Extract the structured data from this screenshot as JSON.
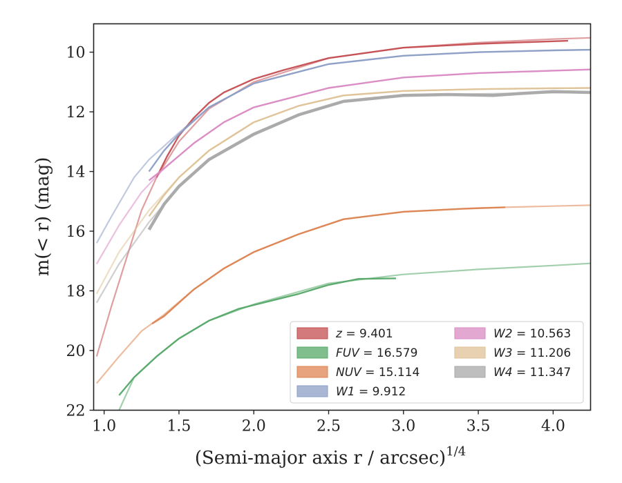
{
  "chart_data": {
    "type": "line",
    "xlabel": "(Semi-major axis r / arcsec)",
    "xlabel_sup": "1/4",
    "ylabel": "m(< r) (mag)",
    "xlim": [
      0.93,
      4.25
    ],
    "ylim": [
      22,
      9.05
    ],
    "y_inverted": true,
    "xticks": [
      1.0,
      1.5,
      2.0,
      2.5,
      3.0,
      3.5,
      4.0
    ],
    "xtick_labels": [
      "1.0",
      "1.5",
      "2.0",
      "2.5",
      "3.0",
      "3.5",
      "4.0"
    ],
    "yticks": [
      10,
      12,
      14,
      16,
      18,
      20,
      22
    ],
    "ytick_labels": [
      "10",
      "12",
      "14",
      "16",
      "18",
      "20",
      "22"
    ],
    "grid": false,
    "legend_position": "lower-right",
    "series": [
      {
        "name": "z = 9.401",
        "legend_parts": [
          "z",
          "9.401"
        ],
        "color": "#c44e52",
        "extrapolated": {
          "x": [
            0.95,
            1.05,
            1.15,
            1.25,
            1.35,
            1.5,
            1.7,
            2.0,
            2.5,
            3.0,
            3.5,
            4.0,
            4.25
          ],
          "y": [
            20.2,
            18.5,
            16.9,
            15.3,
            14.2,
            13.0,
            11.9,
            11.0,
            10.2,
            9.85,
            9.68,
            9.56,
            9.52
          ]
        },
        "measured": {
          "x": [
            1.35,
            1.42,
            1.5,
            1.6,
            1.7,
            1.8,
            2.0,
            2.2,
            2.5,
            3.0,
            3.5,
            4.1
          ],
          "y": [
            14.2,
            13.5,
            12.8,
            12.2,
            11.7,
            11.35,
            10.9,
            10.6,
            10.2,
            9.85,
            9.72,
            9.62
          ]
        }
      },
      {
        "name": "FUV = 16.579",
        "legend_parts": [
          "FUV",
          "16.579"
        ],
        "color": "#55a868",
        "extrapolated": {
          "x": [
            1.1,
            1.2,
            1.35,
            1.5,
            1.7,
            2.0,
            2.5,
            3.0,
            3.5,
            4.0,
            4.25
          ],
          "y": [
            22.0,
            20.9,
            20.2,
            19.6,
            19.0,
            18.45,
            17.75,
            17.45,
            17.28,
            17.15,
            17.08
          ]
        },
        "measured": {
          "x": [
            1.1,
            1.2,
            1.35,
            1.5,
            1.7,
            1.9,
            2.1,
            2.3,
            2.5,
            2.7,
            2.95
          ],
          "y": [
            21.5,
            20.9,
            20.2,
            19.6,
            19.0,
            18.6,
            18.35,
            18.1,
            17.8,
            17.6,
            17.58
          ]
        }
      },
      {
        "name": "NUV = 15.114",
        "legend_parts": [
          "NUV",
          "15.114"
        ],
        "color": "#dd8452",
        "extrapolated": {
          "x": [
            0.95,
            1.1,
            1.25,
            1.4,
            1.6,
            1.8,
            2.0,
            2.3,
            2.6,
            3.0,
            3.5,
            4.0,
            4.25
          ],
          "y": [
            21.1,
            20.2,
            19.35,
            18.8,
            17.95,
            17.25,
            16.7,
            16.1,
            15.6,
            15.35,
            15.22,
            15.16,
            15.13
          ]
        },
        "measured": {
          "x": [
            1.32,
            1.4,
            1.6,
            1.8,
            2.0,
            2.3,
            2.6,
            3.0,
            3.4,
            3.68
          ],
          "y": [
            19.1,
            18.85,
            17.95,
            17.25,
            16.7,
            16.1,
            15.6,
            15.35,
            15.25,
            15.2
          ]
        }
      },
      {
        "name": "W1 = 9.912",
        "legend_parts": [
          "W1",
          "9.912"
        ],
        "color": "#8c9ec5",
        "extrapolated": {
          "x": [
            0.95,
            1.05,
            1.2,
            1.3,
            1.4,
            1.5,
            1.7,
            2.0,
            2.5,
            3.0,
            3.5,
            4.0,
            4.25
          ],
          "y": [
            16.4,
            15.5,
            14.2,
            13.6,
            13.15,
            12.7,
            11.85,
            11.05,
            10.4,
            10.12,
            10.0,
            9.94,
            9.92
          ]
        },
        "measured": {
          "x": [
            1.3,
            1.4,
            1.5,
            1.7,
            2.0,
            2.5,
            3.0,
            3.5,
            4.0,
            4.25
          ],
          "y": [
            14.0,
            13.3,
            12.75,
            11.85,
            11.05,
            10.4,
            10.12,
            10.0,
            9.94,
            9.92
          ]
        }
      },
      {
        "name": "W2 = 10.563",
        "legend_parts": [
          "W2",
          "10.563"
        ],
        "color": "#da8bc3",
        "extrapolated": {
          "x": [
            0.95,
            1.1,
            1.25,
            1.4,
            1.6,
            1.8,
            2.0,
            2.5,
            3.0,
            3.5,
            4.0,
            4.25
          ],
          "y": [
            17.1,
            15.8,
            14.7,
            13.9,
            13.05,
            12.35,
            11.85,
            11.2,
            10.85,
            10.7,
            10.62,
            10.58
          ]
        },
        "measured": {
          "x": [
            1.3,
            1.4,
            1.6,
            1.8,
            2.0,
            2.5,
            3.0,
            3.5,
            4.0,
            4.25
          ],
          "y": [
            14.3,
            13.9,
            13.05,
            12.35,
            11.85,
            11.2,
            10.85,
            10.7,
            10.62,
            10.58
          ]
        }
      },
      {
        "name": "W3 = 11.206",
        "legend_parts": [
          "W3",
          "11.206"
        ],
        "color": "#dfc297",
        "extrapolated": {
          "x": [
            0.95,
            1.1,
            1.3,
            1.5,
            1.7,
            2.0,
            2.3,
            2.6,
            3.0,
            3.5,
            4.0,
            4.25
          ],
          "y": [
            18.1,
            16.7,
            15.3,
            14.2,
            13.3,
            12.35,
            11.8,
            11.45,
            11.3,
            11.24,
            11.21,
            11.2
          ]
        },
        "measured": {
          "x": [
            1.3,
            1.4,
            1.5,
            1.7,
            2.0,
            2.3,
            2.6,
            3.0,
            3.5,
            4.0,
            4.25
          ],
          "y": [
            15.5,
            14.8,
            14.2,
            13.3,
            12.35,
            11.8,
            11.45,
            11.3,
            11.24,
            11.21,
            11.2
          ]
        }
      },
      {
        "name": "W4 = 11.347",
        "legend_parts": [
          "W4",
          "11.347"
        ],
        "color": "#a8a8a8",
        "extrapolated": {
          "x": [
            0.95,
            1.1,
            1.3,
            1.5,
            1.7,
            2.0,
            2.3,
            2.6,
            3.0,
            3.5,
            4.0,
            4.25
          ],
          "y": [
            18.4,
            17.1,
            15.7,
            14.5,
            13.6,
            12.75,
            12.1,
            11.65,
            11.45,
            11.4,
            11.36,
            11.35
          ]
        },
        "measured": {
          "x": [
            1.3,
            1.4,
            1.5,
            1.7,
            2.0,
            2.3,
            2.6,
            3.0,
            3.3,
            3.6,
            3.8,
            4.0,
            4.25
          ],
          "y": [
            15.95,
            15.1,
            14.5,
            13.6,
            12.75,
            12.1,
            11.65,
            11.45,
            11.42,
            11.45,
            11.38,
            11.32,
            11.35
          ]
        }
      }
    ]
  }
}
